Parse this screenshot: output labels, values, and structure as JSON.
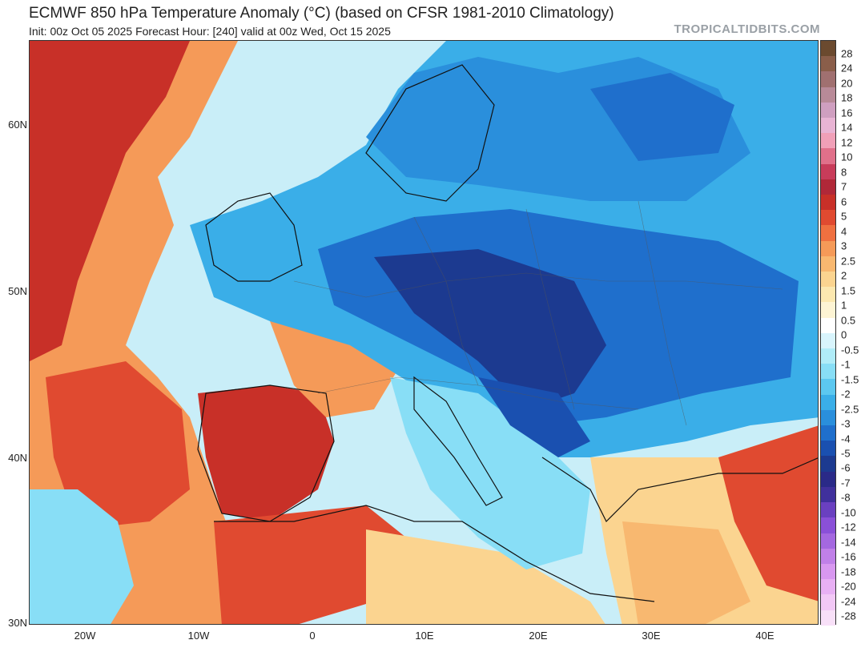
{
  "header": {
    "title": "ECMWF 850 hPa Temperature Anomaly (°C) (based on CFSR 1981-2010 Climatology)",
    "subtitle": "Init: 00z Oct 05 2025   Forecast Hour: [240]   valid at 00z Wed, Oct 15 2025",
    "source": "TROPICALTIDBITS.COM"
  },
  "axes": {
    "lat_labels": [
      "60N",
      "50N",
      "40N",
      "30N"
    ],
    "lon_labels": [
      "20W",
      "10W",
      "0",
      "10E",
      "20E",
      "30E",
      "40E"
    ]
  },
  "legend": {
    "labels": [
      "28",
      "24",
      "20",
      "18",
      "16",
      "14",
      "12",
      "10",
      "8",
      "7",
      "6",
      "5",
      "4",
      "3",
      "2.5",
      "2",
      "1.5",
      "1",
      "0.5",
      "0",
      "-0.5",
      "-1",
      "-1.5",
      "-2",
      "-2.5",
      "-3",
      "-4",
      "-5",
      "-6",
      "-7",
      "-8",
      "-10",
      "-12",
      "-14",
      "-16",
      "-18",
      "-20",
      "-24",
      "-28"
    ],
    "colors": [
      "#6b4a2f",
      "#8a5e4a",
      "#a07070",
      "#b88a98",
      "#cf9fc0",
      "#e8b4d4",
      "#f0a0b8",
      "#e0708a",
      "#c83c5a",
      "#b02838",
      "#c83028",
      "#e04a30",
      "#ef7040",
      "#f59a58",
      "#f8b870",
      "#fbd490",
      "#fce8b0",
      "#fdf4d4",
      "#ffffff",
      "#d8f4fc",
      "#b0ecf8",
      "#88def6",
      "#5cc8f0",
      "#3aaee8",
      "#2a8fdc",
      "#1f6fcc",
      "#1a50b0",
      "#1c3a90",
      "#2a2a88",
      "#40309c",
      "#6a40c0",
      "#8a50d8",
      "#a468e0",
      "#c080e8",
      "#d898f0",
      "#e8b0f4",
      "#f2c8f6",
      "#f8e0f8"
    ]
  }
}
